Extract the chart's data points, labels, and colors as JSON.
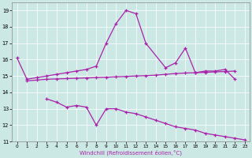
{
  "xlabel": "Windchill (Refroidissement éolien,°C)",
  "background_color": "#cce8e4",
  "line_color": "#aa22aa",
  "line1_x": [
    0,
    1,
    2,
    3,
    4,
    5,
    6,
    7,
    8,
    9,
    10,
    11,
    12,
    13,
    15,
    16,
    17,
    18,
    19,
    20,
    21,
    22
  ],
  "line1_y": [
    16.1,
    14.8,
    14.9,
    15.0,
    15.1,
    15.2,
    15.3,
    15.4,
    15.6,
    17.0,
    18.2,
    19.0,
    18.8,
    17.0,
    15.5,
    15.8,
    16.7,
    15.2,
    15.3,
    15.3,
    15.4,
    14.8
  ],
  "line2_x": [
    1,
    2,
    3,
    4,
    5,
    6,
    7,
    8,
    9,
    10,
    11,
    12,
    13,
    14,
    15,
    16,
    17,
    18,
    19,
    20,
    21,
    22
  ],
  "line2_y": [
    14.7,
    14.75,
    14.8,
    14.82,
    14.84,
    14.86,
    14.88,
    14.9,
    14.92,
    14.95,
    14.97,
    15.0,
    15.02,
    15.05,
    15.1,
    15.15,
    15.18,
    15.2,
    15.22,
    15.25,
    15.27,
    15.3
  ],
  "line3_x": [
    3,
    4,
    5,
    6,
    7,
    8,
    9,
    10,
    11,
    12,
    13,
    14,
    15,
    16,
    17,
    18,
    19,
    20,
    21,
    22,
    23
  ],
  "line3_y": [
    13.6,
    13.4,
    13.1,
    13.2,
    13.1,
    12.0,
    13.0,
    13.0,
    12.8,
    12.7,
    12.5,
    12.3,
    12.1,
    11.9,
    11.8,
    11.7,
    11.5,
    11.4,
    11.3,
    11.2,
    11.1
  ],
  "ylim": [
    11,
    19.5
  ],
  "xlim": [
    -0.5,
    23.5
  ],
  "yticks": [
    11,
    12,
    13,
    14,
    15,
    16,
    17,
    18,
    19
  ],
  "xticks": [
    0,
    1,
    2,
    3,
    4,
    5,
    6,
    7,
    8,
    9,
    10,
    11,
    12,
    13,
    14,
    15,
    16,
    17,
    18,
    19,
    20,
    21,
    22,
    23
  ]
}
